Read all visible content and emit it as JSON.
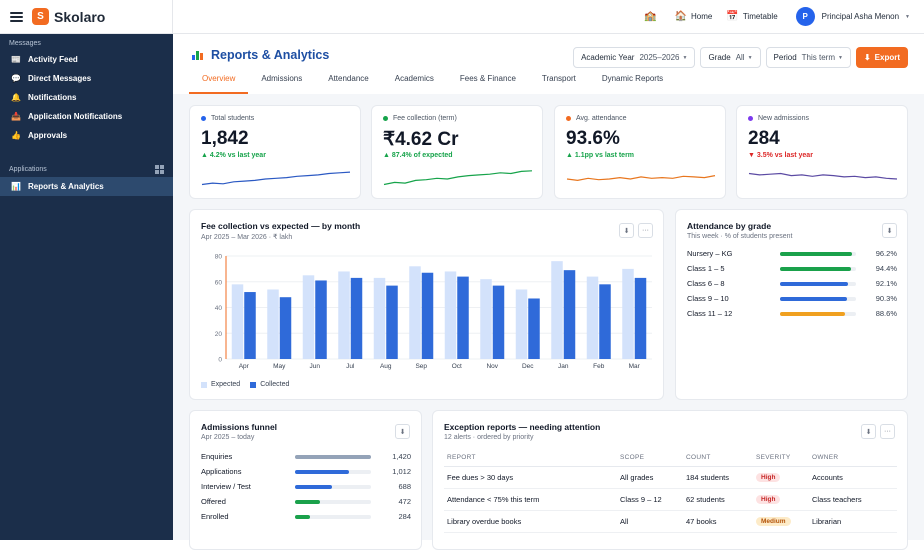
{
  "app": {
    "name": "Skolaro",
    "logo_letter": "S"
  },
  "topbar": {
    "home": "Home",
    "timetable": "Timetable",
    "user": "Principal Asha Menon",
    "user_initial": "P"
  },
  "sidebar": {
    "sections": [
      {
        "title": "Messages",
        "items": [
          {
            "label": "Activity Feed",
            "icon": "newspaper-icon"
          },
          {
            "label": "Direct Messages",
            "icon": "chat-icon"
          },
          {
            "label": "Notifications",
            "icon": "bell-icon"
          },
          {
            "label": "Application Notifications",
            "icon": "inbox-icon"
          },
          {
            "label": "Approvals",
            "icon": "thumbs-up-icon"
          }
        ]
      },
      {
        "title": "Applications",
        "items": [
          {
            "label": "Reports & Analytics",
            "icon": "bar-chart-icon",
            "active": true
          }
        ]
      }
    ]
  },
  "page": {
    "title": "Reports & Analytics",
    "filters": [
      {
        "label": "Academic Year",
        "value": "2025–2026"
      },
      {
        "label": "Grade",
        "value": "All"
      },
      {
        "label": "Period",
        "value": "This term"
      }
    ],
    "export_label": "Export",
    "tabs": [
      "Overview",
      "Admissions",
      "Attendance",
      "Academics",
      "Fees & Finance",
      "Transport",
      "Dynamic Reports"
    ],
    "active_tab": 0
  },
  "kpis": [
    {
      "label": "Total students",
      "value": "1,842",
      "delta": "▲ 4.2% vs last year",
      "dot": "#2563eb",
      "delta_color": "#16a34a",
      "line_color": "#2b59c3",
      "trend": [
        14,
        15,
        14.5,
        16,
        16.5,
        17,
        18,
        18.5,
        19,
        20,
        20.5,
        21,
        22,
        22.5,
        23
      ]
    },
    {
      "label": "Fee collection (term)",
      "value": "₹4.62 Cr",
      "delta": "▲ 87.4% of expected",
      "dot": "#16a34a",
      "delta_color": "#16a34a",
      "line_color": "#16a34a",
      "trend": [
        14,
        15.5,
        15,
        17,
        17.5,
        18.5,
        18,
        19.5,
        20.5,
        21,
        21.5,
        22.5,
        22,
        23.5,
        24
      ]
    },
    {
      "label": "Avg. attendance",
      "value": "93.6%",
      "delta": "▲ 1.1pp vs last term",
      "dot": "#f26b21",
      "delta_color": "#16a34a",
      "line_color": "#e8761e",
      "trend": [
        18,
        17,
        18.5,
        17.5,
        18,
        19,
        18,
        19.5,
        18.5,
        19,
        18.5,
        20,
        19.5,
        19,
        20.5
      ]
    },
    {
      "label": "New admissions",
      "value": "284",
      "delta": "▼ 3.5% vs last year",
      "dot": "#7c3aed",
      "delta_color": "#dc2626",
      "line_color": "#5b4aa3",
      "trend": [
        22,
        21,
        21.5,
        22,
        20.5,
        21,
        20,
        21,
        20.5,
        19.5,
        20,
        19,
        19.5,
        18.5,
        18
      ]
    }
  ],
  "fee_chart": {
    "title": "Fee collection vs expected — by month",
    "subtitle": "Apr 2025 – Mar 2026 · ₹ lakh",
    "legend": [
      "Expected",
      "Collected"
    ]
  },
  "chart_data": {
    "type": "bar",
    "categories": [
      "Apr",
      "May",
      "Jun",
      "Jul",
      "Aug",
      "Sep",
      "Oct",
      "Nov",
      "Dec",
      "Jan",
      "Feb",
      "Mar"
    ],
    "series": [
      {
        "name": "Expected",
        "values": [
          58,
          54,
          65,
          68,
          63,
          72,
          68,
          62,
          54,
          76,
          64,
          70
        ],
        "color": "#d3e2fb"
      },
      {
        "name": "Collected",
        "values": [
          52,
          48,
          61,
          63,
          57,
          67,
          64,
          57,
          47,
          69,
          58,
          63
        ],
        "color": "#2f6ad9"
      }
    ],
    "ylim": [
      0,
      80
    ],
    "yticks": [
      0,
      20,
      40,
      60,
      80
    ],
    "title": "Fee collection vs expected — by month",
    "xlabel": "",
    "ylabel": "",
    "grid": true,
    "legend_position": "bottom-left"
  },
  "attendance": {
    "title": "Attendance by grade",
    "subtitle": "This week · % of students present",
    "rows": [
      {
        "label": "Nursery – KG",
        "value": "96.2%",
        "pct": 96.2,
        "color": "#1aa14b"
      },
      {
        "label": "Class 1 – 5",
        "value": "94.4%",
        "pct": 94.4,
        "color": "#1aa14b"
      },
      {
        "label": "Class 6 – 8",
        "value": "92.1%",
        "pct": 92.1,
        "color": "#2f6ad9"
      },
      {
        "label": "Class 9 – 10",
        "value": "90.3%",
        "pct": 90.3,
        "color": "#2f6ad9"
      },
      {
        "label": "Class 11 – 12",
        "value": "88.6%",
        "pct": 88.6,
        "color": "#f0a020"
      }
    ]
  },
  "funnel": {
    "title": "Admissions funnel",
    "subtitle": "Apr 2025 – today",
    "rows": [
      {
        "label": "Enquiries",
        "value": "1,420",
        "n": 1420,
        "color": "#94a3b8"
      },
      {
        "label": "Applications",
        "value": "1,012",
        "n": 1012,
        "color": "#2f6ad9"
      },
      {
        "label": "Interview / Test",
        "value": "688",
        "n": 688,
        "color": "#2f6ad9"
      },
      {
        "label": "Offered",
        "value": "472",
        "n": 472,
        "color": "#1aa14b"
      },
      {
        "label": "Enrolled",
        "value": "284",
        "n": 284,
        "color": "#1aa14b"
      }
    ]
  },
  "exceptions": {
    "title": "Exception reports — needing attention",
    "subtitle": "12 alerts · ordered by priority",
    "columns": [
      "REPORT",
      "SCOPE",
      "COUNT",
      "SEVERITY",
      "OWNER"
    ],
    "rows": [
      {
        "report": "Fee dues > 30 days",
        "scope": "All grades",
        "count": "184 students",
        "severity": "High",
        "owner": "Accounts"
      },
      {
        "report": "Attendance < 75% this term",
        "scope": "Class 9 – 12",
        "count": "62 students",
        "severity": "High",
        "owner": "Class teachers"
      },
      {
        "report": "Library overdue books",
        "scope": "All",
        "count": "47 books",
        "severity": "Medium",
        "owner": "Librarian"
      }
    ]
  }
}
